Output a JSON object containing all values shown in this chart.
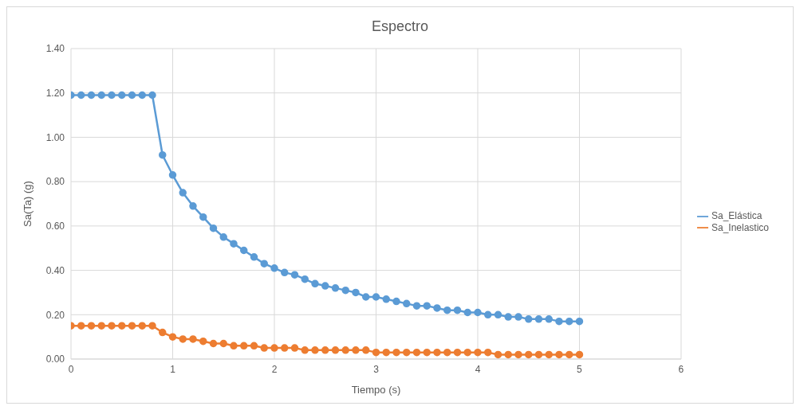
{
  "chart_data": {
    "type": "line",
    "title": "Espectro",
    "xlabel": "Tiempo (s)",
    "ylabel": "Sa(Ta)  (g)",
    "x": [
      0,
      0.1,
      0.2,
      0.3,
      0.4,
      0.5,
      0.6,
      0.7,
      0.8,
      0.9,
      1,
      1.1,
      1.2,
      1.3,
      1.4,
      1.5,
      1.6,
      1.7,
      1.8,
      1.9,
      2,
      2.1,
      2.2,
      2.3,
      2.4,
      2.5,
      2.6,
      2.7,
      2.8,
      2.9,
      3,
      3.1,
      3.2,
      3.3,
      3.4,
      3.5,
      3.6,
      3.7,
      3.8,
      3.9,
      4,
      4.1,
      4.2,
      4.3,
      4.4,
      4.5,
      4.6,
      4.7,
      4.8,
      4.9,
      5
    ],
    "series": [
      {
        "name": "Sa_Elástica",
        "color": "#5b9bd5",
        "values": [
          1.19,
          1.19,
          1.19,
          1.19,
          1.19,
          1.19,
          1.19,
          1.19,
          1.19,
          0.92,
          0.83,
          0.75,
          0.69,
          0.64,
          0.59,
          0.55,
          0.52,
          0.49,
          0.46,
          0.43,
          0.41,
          0.39,
          0.38,
          0.36,
          0.34,
          0.33,
          0.32,
          0.31,
          0.3,
          0.28,
          0.28,
          0.27,
          0.26,
          0.25,
          0.24,
          0.24,
          0.23,
          0.22,
          0.22,
          0.21,
          0.21,
          0.2,
          0.2,
          0.19,
          0.19,
          0.18,
          0.18,
          0.18,
          0.17,
          0.17,
          0.17
        ]
      },
      {
        "name": "Sa_Inelastico",
        "color": "#ed7d31",
        "values": [
          0.15,
          0.15,
          0.15,
          0.15,
          0.15,
          0.15,
          0.15,
          0.15,
          0.15,
          0.12,
          0.1,
          0.09,
          0.09,
          0.08,
          0.07,
          0.07,
          0.06,
          0.06,
          0.06,
          0.05,
          0.05,
          0.05,
          0.05,
          0.04,
          0.04,
          0.04,
          0.04,
          0.04,
          0.04,
          0.04,
          0.03,
          0.03,
          0.03,
          0.03,
          0.03,
          0.03,
          0.03,
          0.03,
          0.03,
          0.03,
          0.03,
          0.03,
          0.02,
          0.02,
          0.02,
          0.02,
          0.02,
          0.02,
          0.02,
          0.02,
          0.02
        ]
      }
    ],
    "xlim": [
      0,
      6
    ],
    "xticks": [
      0,
      1,
      2,
      3,
      4,
      5,
      6
    ],
    "ylim": [
      0,
      1.4
    ],
    "yticks": [
      {
        "value": 0,
        "label": "0.00"
      },
      {
        "value": 0.2,
        "label": "0.20"
      },
      {
        "value": 0.4,
        "label": "0.40"
      },
      {
        "value": 0.6,
        "label": "0.60"
      },
      {
        "value": 0.8,
        "label": "0.80"
      },
      {
        "value": 1,
        "label": "1.00"
      },
      {
        "value": 1.2,
        "label": "1.20"
      },
      {
        "value": 1.4,
        "label": "1.40"
      }
    ],
    "grid": true,
    "legend": "right",
    "marker": "circle",
    "line_style": "solid"
  }
}
